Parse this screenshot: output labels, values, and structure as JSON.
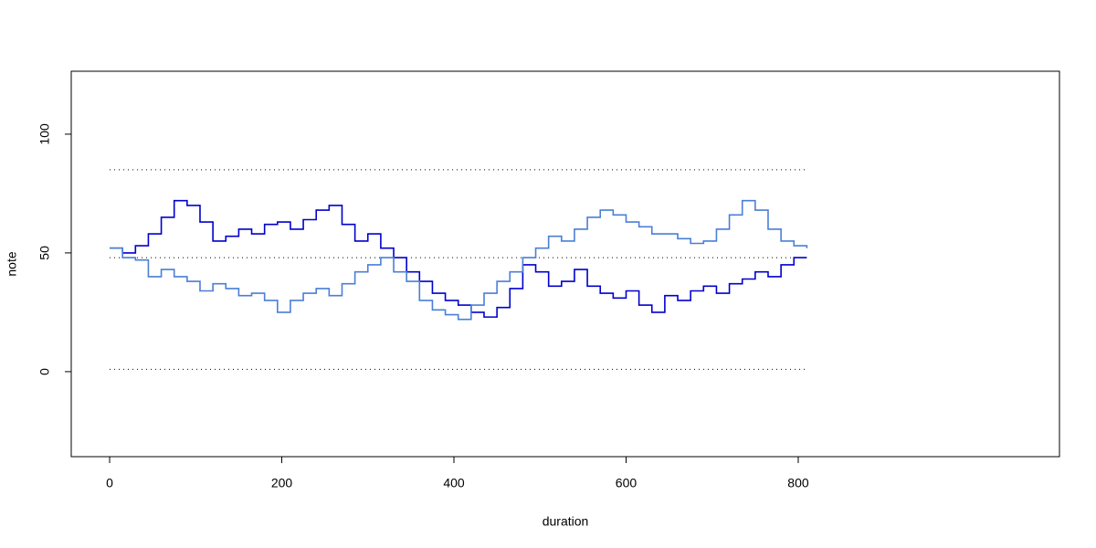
{
  "chart_data": {
    "type": "step",
    "xlabel": "duration",
    "ylabel": "note",
    "xlim": [
      -44.6,
      1103.5
    ],
    "ylim": [
      -35.8,
      126.5
    ],
    "xticks": [
      0,
      200,
      400,
      600,
      800
    ],
    "yticks": [
      0,
      50,
      100
    ],
    "hlines": [
      85,
      48,
      1
    ],
    "hline_range": [
      0,
      810
    ],
    "x": [
      0,
      15,
      30,
      45,
      60,
      75,
      90,
      105,
      120,
      135,
      150,
      165,
      180,
      195,
      210,
      225,
      240,
      255,
      270,
      285,
      300,
      315,
      330,
      345,
      360,
      375,
      390,
      405,
      420,
      435,
      450,
      465,
      480,
      495,
      510,
      525,
      540,
      555,
      570,
      585,
      600,
      615,
      630,
      645,
      660,
      675,
      690,
      705,
      720,
      735,
      750,
      765,
      780,
      795,
      810
    ],
    "series": [
      {
        "color": "#0000cd",
        "values": [
          52,
          50,
          53,
          58,
          65,
          72,
          70,
          63,
          55,
          57,
          60,
          58,
          62,
          63,
          60,
          64,
          68,
          70,
          62,
          55,
          58,
          52,
          48,
          42,
          38,
          33,
          30,
          28,
          25,
          23,
          27,
          35,
          45,
          42,
          36,
          38,
          43,
          36,
          33,
          31,
          34,
          28,
          25,
          32,
          30,
          34,
          36,
          33,
          37,
          39,
          42,
          40,
          45,
          48,
          48
        ]
      },
      {
        "color": "#4a7fd6",
        "values": [
          52,
          48,
          47,
          40,
          43,
          40,
          38,
          34,
          37,
          35,
          32,
          33,
          30,
          25,
          30,
          33,
          35,
          32,
          37,
          42,
          45,
          48,
          42,
          38,
          30,
          26,
          24,
          22,
          28,
          33,
          38,
          42,
          48,
          52,
          57,
          55,
          60,
          65,
          68,
          66,
          63,
          61,
          58,
          58,
          56,
          54,
          55,
          60,
          66,
          72,
          68,
          60,
          55,
          53,
          52
        ]
      }
    ]
  }
}
